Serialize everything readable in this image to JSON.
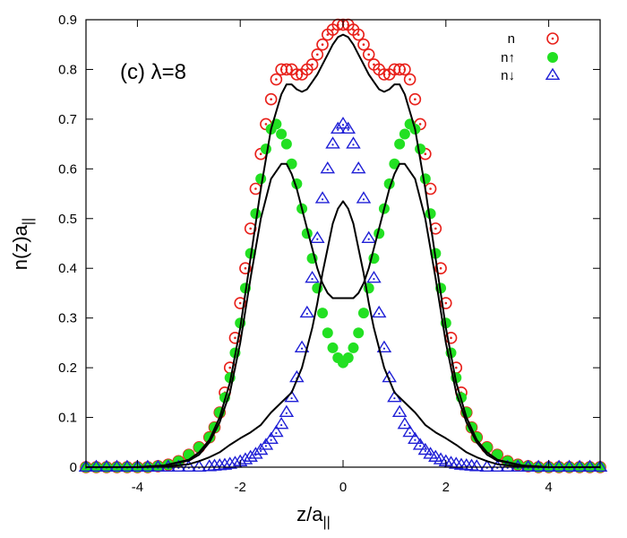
{
  "chart_data": {
    "type": "scatter",
    "panel_label": "(c) λ=8",
    "xlabel": "z/a",
    "xlabel_sub": "||",
    "ylabel": "n(z)a",
    "ylabel_sub": "||",
    "xlim": [
      -5,
      5
    ],
    "ylim": [
      0,
      0.9
    ],
    "xticks": [
      -4,
      -2,
      0,
      2,
      4
    ],
    "xtick_labels": [
      "-4",
      "-2",
      "0",
      "2",
      "4"
    ],
    "yticks": [
      0,
      0.1,
      0.2,
      0.3,
      0.4,
      0.5,
      0.6,
      0.7,
      0.8,
      0.9
    ],
    "ytick_labels": [
      "0",
      "0.1",
      "0.2",
      "0.3",
      "0.4",
      "0.5",
      "0.6",
      "0.7",
      "0.8",
      "0.9"
    ],
    "grid": false,
    "legend_position": "top-right",
    "colors": {
      "n": "#e8201a",
      "n_up": "#22e022",
      "n_down": "#1f1fd6",
      "line": "#000000"
    },
    "series": [
      {
        "name": "n",
        "legend_label": "n",
        "marker": "circle-dot",
        "x": [
          -5.0,
          -4.8,
          -4.6,
          -4.4,
          -4.2,
          -4.0,
          -3.8,
          -3.6,
          -3.4,
          -3.2,
          -3.0,
          -2.8,
          -2.6,
          -2.5,
          -2.4,
          -2.3,
          -2.2,
          -2.1,
          -2.0,
          -1.9,
          -1.8,
          -1.7,
          -1.6,
          -1.5,
          -1.4,
          -1.3,
          -1.2,
          -1.1,
          -1.0,
          -0.9,
          -0.8,
          -0.7,
          -0.6,
          -0.5,
          -0.4,
          -0.3,
          -0.2,
          -0.1,
          0.0,
          0.1,
          0.2,
          0.3,
          0.4,
          0.5,
          0.6,
          0.7,
          0.8,
          0.9,
          1.0,
          1.1,
          1.2,
          1.3,
          1.4,
          1.5,
          1.6,
          1.7,
          1.8,
          1.9,
          2.0,
          2.1,
          2.2,
          2.3,
          2.4,
          2.5,
          2.6,
          2.8,
          3.0,
          3.2,
          3.4,
          3.6,
          3.8,
          4.0,
          4.2,
          4.4,
          4.6,
          4.8,
          5.0
        ],
        "y": [
          0,
          0,
          0,
          0,
          0,
          0,
          0,
          0.002,
          0.005,
          0.012,
          0.025,
          0.04,
          0.06,
          0.08,
          0.11,
          0.15,
          0.2,
          0.26,
          0.33,
          0.4,
          0.48,
          0.56,
          0.63,
          0.69,
          0.74,
          0.78,
          0.8,
          0.8,
          0.8,
          0.79,
          0.79,
          0.8,
          0.81,
          0.83,
          0.85,
          0.87,
          0.88,
          0.89,
          0.89,
          0.89,
          0.88,
          0.87,
          0.85,
          0.83,
          0.81,
          0.8,
          0.79,
          0.79,
          0.8,
          0.8,
          0.8,
          0.78,
          0.74,
          0.69,
          0.63,
          0.56,
          0.48,
          0.4,
          0.33,
          0.26,
          0.2,
          0.15,
          0.11,
          0.08,
          0.06,
          0.04,
          0.025,
          0.012,
          0.005,
          0.002,
          0,
          0,
          0,
          0,
          0,
          0,
          0
        ]
      },
      {
        "name": "n↑",
        "legend_label": "n↑",
        "marker": "filled-circle",
        "x": [
          -5.0,
          -4.8,
          -4.6,
          -4.4,
          -4.2,
          -4.0,
          -3.8,
          -3.6,
          -3.4,
          -3.2,
          -3.0,
          -2.8,
          -2.6,
          -2.5,
          -2.4,
          -2.3,
          -2.2,
          -2.1,
          -2.0,
          -1.9,
          -1.8,
          -1.7,
          -1.6,
          -1.5,
          -1.4,
          -1.3,
          -1.2,
          -1.1,
          -1.0,
          -0.9,
          -0.8,
          -0.7,
          -0.6,
          -0.5,
          -0.4,
          -0.3,
          -0.2,
          -0.1,
          0.0,
          0.1,
          0.2,
          0.3,
          0.4,
          0.5,
          0.6,
          0.7,
          0.8,
          0.9,
          1.0,
          1.1,
          1.2,
          1.3,
          1.4,
          1.5,
          1.6,
          1.7,
          1.8,
          1.9,
          2.0,
          2.1,
          2.2,
          2.3,
          2.4,
          2.5,
          2.6,
          2.8,
          3.0,
          3.2,
          3.4,
          3.6,
          3.8,
          4.0,
          4.2,
          4.4,
          4.6,
          4.8,
          5.0
        ],
        "y": [
          0,
          0,
          0,
          0,
          0,
          0,
          0,
          0.002,
          0.005,
          0.012,
          0.025,
          0.04,
          0.06,
          0.08,
          0.11,
          0.14,
          0.18,
          0.23,
          0.29,
          0.36,
          0.43,
          0.51,
          0.58,
          0.64,
          0.68,
          0.69,
          0.67,
          0.65,
          0.61,
          0.57,
          0.52,
          0.47,
          0.42,
          0.36,
          0.31,
          0.27,
          0.24,
          0.22,
          0.21,
          0.22,
          0.24,
          0.27,
          0.31,
          0.36,
          0.42,
          0.47,
          0.52,
          0.57,
          0.61,
          0.65,
          0.67,
          0.69,
          0.68,
          0.64,
          0.58,
          0.51,
          0.43,
          0.36,
          0.29,
          0.23,
          0.18,
          0.14,
          0.11,
          0.08,
          0.06,
          0.04,
          0.025,
          0.012,
          0.005,
          0.002,
          0,
          0,
          0,
          0,
          0,
          0,
          0
        ]
      },
      {
        "name": "n↓",
        "legend_label": "n↓",
        "marker": "triangle-dot",
        "x": [
          -5.0,
          -4.8,
          -4.6,
          -4.4,
          -4.2,
          -4.0,
          -3.8,
          -3.6,
          -3.4,
          -3.2,
          -3.0,
          -2.8,
          -2.6,
          -2.5,
          -2.4,
          -2.3,
          -2.2,
          -2.1,
          -2.0,
          -1.9,
          -1.8,
          -1.7,
          -1.6,
          -1.5,
          -1.4,
          -1.3,
          -1.2,
          -1.1,
          -1.0,
          -0.9,
          -0.8,
          -0.7,
          -0.6,
          -0.5,
          -0.4,
          -0.3,
          -0.2,
          -0.1,
          0.0,
          0.1,
          0.2,
          0.3,
          0.4,
          0.5,
          0.6,
          0.7,
          0.8,
          0.9,
          1.0,
          1.1,
          1.2,
          1.3,
          1.4,
          1.5,
          1.6,
          1.7,
          1.8,
          1.9,
          2.0,
          2.1,
          2.2,
          2.3,
          2.4,
          2.5,
          2.6,
          2.8,
          3.0,
          3.2,
          3.4,
          3.6,
          3.8,
          4.0,
          4.2,
          4.4,
          4.6,
          4.8,
          5.0
        ],
        "y": [
          0,
          0,
          0,
          0,
          0,
          0,
          0,
          0,
          0,
          0,
          0,
          0,
          0.001,
          0.002,
          0.003,
          0.004,
          0.006,
          0.008,
          0.011,
          0.015,
          0.02,
          0.026,
          0.034,
          0.044,
          0.056,
          0.07,
          0.086,
          0.11,
          0.14,
          0.18,
          0.24,
          0.31,
          0.38,
          0.46,
          0.54,
          0.6,
          0.65,
          0.68,
          0.69,
          0.68,
          0.65,
          0.6,
          0.54,
          0.46,
          0.38,
          0.31,
          0.24,
          0.18,
          0.14,
          0.11,
          0.086,
          0.07,
          0.056,
          0.044,
          0.034,
          0.026,
          0.02,
          0.015,
          0.011,
          0.008,
          0.006,
          0.004,
          0.003,
          0.002,
          0.001,
          0,
          0,
          0,
          0,
          0,
          0,
          0,
          0,
          0,
          0,
          0,
          0
        ]
      }
    ],
    "lines": [
      {
        "x": [
          -5.0,
          -4.0,
          -3.5,
          -3.0,
          -2.8,
          -2.6,
          -2.4,
          -2.2,
          -2.0,
          -1.8,
          -1.6,
          -1.4,
          -1.2,
          -1.1,
          -1.0,
          -0.9,
          -0.8,
          -0.7,
          -0.6,
          -0.5,
          -0.4,
          -0.3,
          -0.2,
          -0.1,
          0.0,
          0.1,
          0.2,
          0.3,
          0.4,
          0.5,
          0.6,
          0.7,
          0.8,
          0.9,
          1.0,
          1.1,
          1.2,
          1.4,
          1.6,
          1.8,
          2.0,
          2.2,
          2.4,
          2.6,
          2.8,
          3.0,
          3.5,
          4.0,
          5.0
        ],
        "y": [
          0,
          0,
          0.003,
          0.015,
          0.03,
          0.055,
          0.1,
          0.17,
          0.28,
          0.42,
          0.56,
          0.68,
          0.75,
          0.77,
          0.77,
          0.76,
          0.755,
          0.76,
          0.775,
          0.79,
          0.81,
          0.83,
          0.85,
          0.865,
          0.87,
          0.865,
          0.85,
          0.83,
          0.81,
          0.79,
          0.775,
          0.76,
          0.755,
          0.76,
          0.77,
          0.77,
          0.75,
          0.68,
          0.56,
          0.42,
          0.28,
          0.17,
          0.1,
          0.055,
          0.03,
          0.015,
          0.003,
          0,
          0
        ]
      },
      {
        "x": [
          -5.0,
          -4.0,
          -3.5,
          -3.0,
          -2.8,
          -2.6,
          -2.4,
          -2.2,
          -2.0,
          -1.8,
          -1.6,
          -1.4,
          -1.2,
          -1.1,
          -1.0,
          -0.9,
          -0.8,
          -0.7,
          -0.6,
          -0.5,
          -0.4,
          -0.3,
          -0.2,
          -0.1,
          0.0,
          0.1,
          0.2,
          0.3,
          0.4,
          0.5,
          0.6,
          0.7,
          0.8,
          0.9,
          1.0,
          1.1,
          1.2,
          1.4,
          1.6,
          1.8,
          2.0,
          2.2,
          2.4,
          2.6,
          2.8,
          3.0,
          3.5,
          4.0,
          5.0
        ],
        "y": [
          0,
          0,
          0.003,
          0.013,
          0.025,
          0.05,
          0.09,
          0.15,
          0.25,
          0.38,
          0.5,
          0.58,
          0.61,
          0.61,
          0.59,
          0.56,
          0.52,
          0.48,
          0.44,
          0.4,
          0.37,
          0.35,
          0.34,
          0.34,
          0.34,
          0.34,
          0.34,
          0.35,
          0.37,
          0.4,
          0.44,
          0.48,
          0.52,
          0.56,
          0.59,
          0.61,
          0.61,
          0.58,
          0.5,
          0.38,
          0.25,
          0.15,
          0.09,
          0.05,
          0.025,
          0.013,
          0.003,
          0,
          0
        ]
      },
      {
        "x": [
          -5.0,
          -4.0,
          -3.5,
          -3.0,
          -2.8,
          -2.6,
          -2.4,
          -2.2,
          -2.0,
          -1.8,
          -1.6,
          -1.4,
          -1.2,
          -1.0,
          -0.8,
          -0.6,
          -0.5,
          -0.4,
          -0.3,
          -0.2,
          -0.1,
          0.0,
          0.1,
          0.2,
          0.3,
          0.4,
          0.5,
          0.6,
          0.8,
          1.0,
          1.2,
          1.4,
          1.6,
          1.8,
          2.0,
          2.2,
          2.4,
          2.6,
          2.8,
          3.0,
          3.5,
          4.0,
          5.0
        ],
        "y": [
          0,
          0,
          0.001,
          0.006,
          0.012,
          0.02,
          0.03,
          0.045,
          0.058,
          0.07,
          0.085,
          0.11,
          0.13,
          0.15,
          0.2,
          0.28,
          0.33,
          0.39,
          0.44,
          0.49,
          0.52,
          0.535,
          0.52,
          0.49,
          0.44,
          0.39,
          0.33,
          0.28,
          0.2,
          0.15,
          0.13,
          0.11,
          0.085,
          0.07,
          0.058,
          0.045,
          0.03,
          0.02,
          0.012,
          0.006,
          0.001,
          0,
          0
        ]
      }
    ]
  }
}
